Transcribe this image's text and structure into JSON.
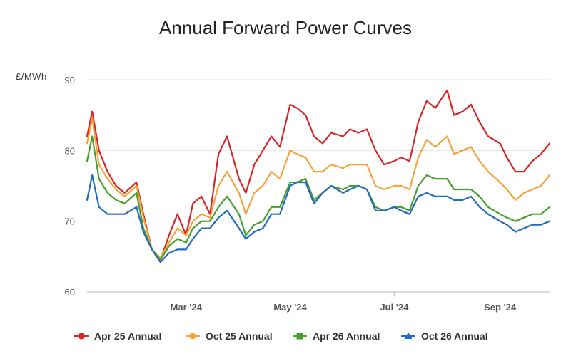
{
  "chart_data": {
    "type": "line",
    "title": "Annual Forward Power Curves",
    "ylabel": "£/MWh",
    "xlabel": "",
    "ylim": [
      60,
      90
    ],
    "yticks": [
      60,
      70,
      80,
      90
    ],
    "xticks": [
      {
        "label": "Mar '24",
        "x": "2024-03-01"
      },
      {
        "label": "May '24",
        "x": "2024-05-01"
      },
      {
        "label": "Jul '24",
        "x": "2024-07-01"
      },
      {
        "label": "Sep '24",
        "x": "2024-09-01"
      }
    ],
    "xlim": [
      "2024-01-03",
      "2024-09-30"
    ],
    "grid": "horizontal",
    "legend": "bottom",
    "x": [
      "2024-01-03",
      "2024-01-06",
      "2024-01-10",
      "2024-01-15",
      "2024-01-20",
      "2024-01-25",
      "2024-02-01",
      "2024-02-05",
      "2024-02-10",
      "2024-02-15",
      "2024-02-20",
      "2024-02-25",
      "2024-03-01",
      "2024-03-05",
      "2024-03-10",
      "2024-03-15",
      "2024-03-20",
      "2024-03-25",
      "2024-04-01",
      "2024-04-05",
      "2024-04-10",
      "2024-04-15",
      "2024-04-20",
      "2024-04-25",
      "2024-05-01",
      "2024-05-05",
      "2024-05-10",
      "2024-05-15",
      "2024-05-20",
      "2024-05-25",
      "2024-06-01",
      "2024-06-05",
      "2024-06-10",
      "2024-06-15",
      "2024-06-20",
      "2024-06-25",
      "2024-07-01",
      "2024-07-05",
      "2024-07-10",
      "2024-07-15",
      "2024-07-20",
      "2024-07-25",
      "2024-08-01",
      "2024-08-05",
      "2024-08-10",
      "2024-08-15",
      "2024-08-20",
      "2024-08-25",
      "2024-09-01",
      "2024-09-05",
      "2024-09-10",
      "2024-09-15",
      "2024-09-20",
      "2024-09-25",
      "2024-09-30"
    ],
    "series": [
      {
        "name": "Apr 25 Annual",
        "color": "#d62728",
        "marker": "circle",
        "values": [
          82,
          85.5,
          80,
          77,
          75,
          74,
          75.5,
          71,
          66,
          64.5,
          68,
          71,
          68,
          72.5,
          73.5,
          71,
          79.5,
          82,
          76,
          74,
          78,
          80,
          82,
          80.5,
          86.5,
          86,
          85,
          82,
          81,
          82.5,
          82,
          83,
          82.5,
          83,
          80,
          78,
          78.5,
          79,
          78.5,
          84,
          87,
          86,
          88.5,
          85,
          85.5,
          86.5,
          84,
          82,
          81,
          79,
          77,
          77,
          78.5,
          79.5,
          81
        ]
      },
      {
        "name": "Oct 25 Annual",
        "color": "#f5a33c",
        "marker": "circle",
        "values": [
          81,
          84.5,
          78,
          76,
          74.5,
          73.5,
          75,
          70.5,
          66,
          64.8,
          67,
          69,
          68,
          70,
          71,
          70.5,
          75,
          77,
          74,
          71,
          74,
          75,
          77,
          76,
          80,
          79.5,
          79,
          77,
          77,
          78,
          77.5,
          78,
          78,
          78,
          75,
          74.5,
          75,
          75,
          74.5,
          79,
          81.5,
          80.5,
          82,
          79.5,
          80,
          80.5,
          78.5,
          77,
          75.5,
          74.5,
          73,
          74,
          74.5,
          75,
          76.5
        ]
      },
      {
        "name": "Apr 26 Annual",
        "color": "#4a9e2f",
        "marker": "square",
        "values": [
          78.5,
          82,
          76,
          74,
          73,
          72.5,
          74,
          69,
          66,
          64.5,
          66.5,
          67.5,
          67,
          69,
          70,
          70,
          72,
          73.5,
          71,
          68,
          69.5,
          70,
          72,
          72,
          75.5,
          75.5,
          76,
          73,
          74,
          75,
          74.5,
          75,
          75,
          74.5,
          72,
          71.5,
          72,
          72,
          71.5,
          75,
          76.5,
          76,
          76,
          74.5,
          74.5,
          74.5,
          73.5,
          72,
          71,
          70.5,
          70,
          70.5,
          71,
          71,
          72
        ]
      },
      {
        "name": "Oct 26 Annual",
        "color": "#1f6bbf",
        "marker": "triangle",
        "values": [
          73,
          76.5,
          72,
          71,
          71,
          71,
          72,
          68.5,
          66,
          64.2,
          65.5,
          66,
          66,
          67.5,
          69,
          69,
          70.5,
          71.5,
          69,
          67.5,
          68.5,
          69,
          71,
          71,
          75,
          75.5,
          75.5,
          72.5,
          74,
          75,
          74,
          74.5,
          75,
          74.5,
          71.5,
          71.5,
          72,
          71.5,
          71,
          73.5,
          74,
          73.5,
          73.5,
          73,
          73,
          73.5,
          72,
          71,
          70,
          69.5,
          68.5,
          69,
          69.5,
          69.5,
          70
        ]
      }
    ]
  }
}
